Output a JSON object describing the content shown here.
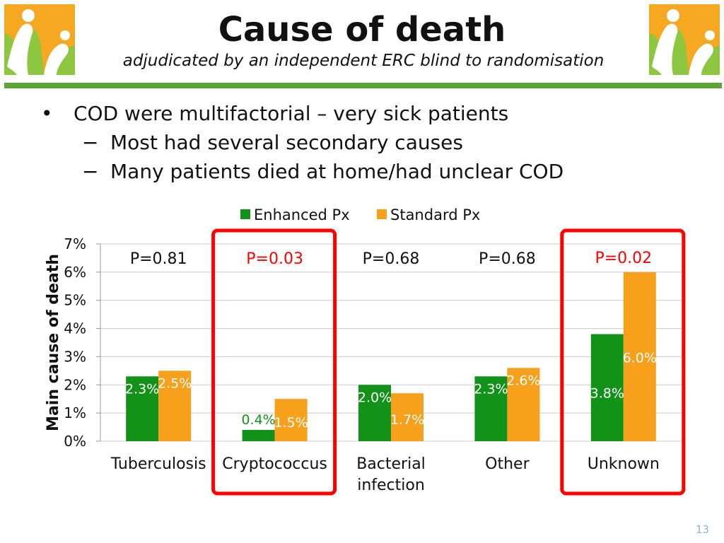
{
  "slide": {
    "title": "Cause of death",
    "subtitle": "adjudicated by an independent ERC blind to randomisation",
    "bullet_main": "COD were multifactorial – very sick patients",
    "sub_bullets": [
      "Most had several secondary causes",
      "Many patients died at home/had unclear COD"
    ],
    "page_number": "13",
    "bullet_symbol": "•",
    "sub_bullet_symbol": "−"
  },
  "colors": {
    "logo_bg": "#f7a823",
    "logo_green": "#8dc63f",
    "accent_rule": "#5da433",
    "enhanced": "#13921a",
    "standard": "#f7a01c",
    "highlight_red": "#ff0000",
    "bar_label_white": "#ffffff"
  },
  "chart_data": {
    "type": "bar",
    "ylabel": "Main cause of death",
    "ylim": [
      0,
      7
    ],
    "yticks": [
      "0%",
      "1%",
      "2%",
      "3%",
      "4%",
      "5%",
      "6%",
      "7%"
    ],
    "grid": true,
    "legend_position": "top",
    "categories": [
      "Tuberculosis",
      "Cryptococcus",
      "Bacterial infection",
      "Other",
      "Unknown"
    ],
    "series": [
      {
        "name": "Enhanced Px",
        "values": [
          2.3,
          0.4,
          2.0,
          2.3,
          3.8
        ],
        "labels": [
          "2.3%",
          "0.4%",
          "2.0%",
          "2.3%",
          "3.8%"
        ]
      },
      {
        "name": "Standard Px",
        "values": [
          2.5,
          1.5,
          1.7,
          2.6,
          6.0
        ],
        "labels": [
          "2.5%",
          "1.5%",
          "1.7%",
          "2.6%",
          "6.0%"
        ]
      }
    ],
    "pvalues": [
      "P=0.81",
      "P=0.03",
      "P=0.68",
      "P=0.68",
      "P=0.02"
    ],
    "highlighted": [
      "Cryptococcus",
      "Unknown"
    ]
  }
}
